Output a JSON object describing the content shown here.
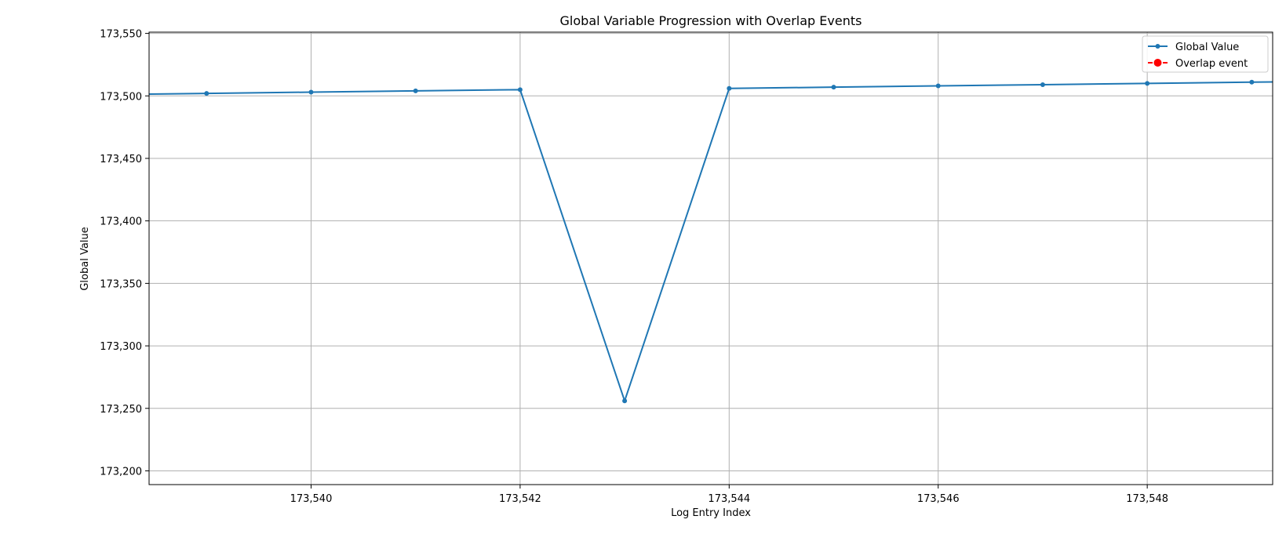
{
  "chart_data": {
    "type": "line",
    "title": "Global Variable Progression with Overlap Events",
    "xlabel": "Log Entry Index",
    "ylabel": "Global Value",
    "xlim": [
      173538.45,
      173549.2
    ],
    "ylim": [
      173189,
      173551
    ],
    "x_ticks": [
      173540,
      173542,
      173544,
      173546,
      173548
    ],
    "x_tick_labels": [
      "173,540",
      "173,542",
      "173,544",
      "173,546",
      "173,548"
    ],
    "y_ticks": [
      173200,
      173250,
      173300,
      173350,
      173400,
      173450,
      173500,
      173550
    ],
    "y_tick_labels": [
      "173,200",
      "173,250",
      "173,300",
      "173,350",
      "173,400",
      "173,450",
      "173,500",
      "173,550"
    ],
    "grid": true,
    "legend_position": "top-right",
    "series": [
      {
        "name": "Global Value",
        "color": "#1f77b4",
        "marker": "dot",
        "x": [
          173538,
          173539,
          173540,
          173541,
          173542,
          173543,
          173544,
          173545,
          173546,
          173547,
          173548,
          173549,
          173550
        ],
        "y": [
          173501,
          173502,
          173503,
          173504,
          173505,
          173256,
          173506,
          173507,
          173508,
          173509,
          173510,
          173511,
          173512
        ]
      },
      {
        "name": "Overlap event",
        "color": "#ff0000",
        "marker": "circle",
        "line_style": "dashed",
        "x": [],
        "y": []
      }
    ]
  }
}
